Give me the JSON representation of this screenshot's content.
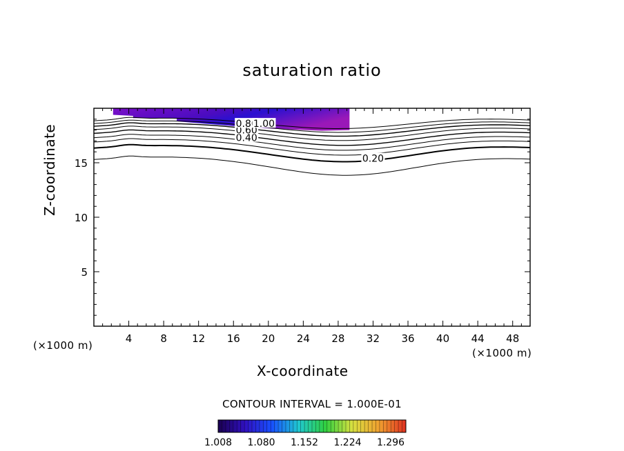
{
  "chart_data": {
    "type": "contour",
    "title": "saturation ratio",
    "xlabel": "X-coordinate",
    "ylabel": "Z-coordinate",
    "x_unit": "(×1000 m)",
    "xlim": [
      0,
      50
    ],
    "ylim": [
      0,
      20
    ],
    "x_ticks": [
      4,
      8,
      12,
      16,
      20,
      24,
      28,
      32,
      36,
      40,
      44,
      48
    ],
    "y_ticks": [
      5,
      10,
      15
    ],
    "contour_interval_text": "CONTOUR INTERVAL = 1.000E-01",
    "contour_labels": [
      {
        "text": "0.20",
        "x": 32,
        "z": 15.4
      },
      {
        "text": "0.40",
        "x": 17.5,
        "z": 17.3
      },
      {
        "text": "0.60",
        "x": 17.5,
        "z": 18.0
      },
      {
        "text": "0.80",
        "x": 17.5,
        "z": 18.6
      },
      {
        "text": "1.00",
        "x": 19.5,
        "z": 18.6
      }
    ],
    "shaded_region": {
      "x_range": [
        2.2,
        29.3
      ],
      "z_range": [
        18.0,
        20.0
      ],
      "min": 1.008,
      "max": 1.3
    },
    "colorbar": {
      "ticks": [
        "1.008",
        "1.080",
        "1.152",
        "1.224",
        "1.296"
      ],
      "colors": [
        "#1a0050",
        "#3010c0",
        "#1850ff",
        "#20c8d0",
        "#30d040",
        "#d8e040",
        "#f0a030",
        "#e03020"
      ]
    }
  }
}
